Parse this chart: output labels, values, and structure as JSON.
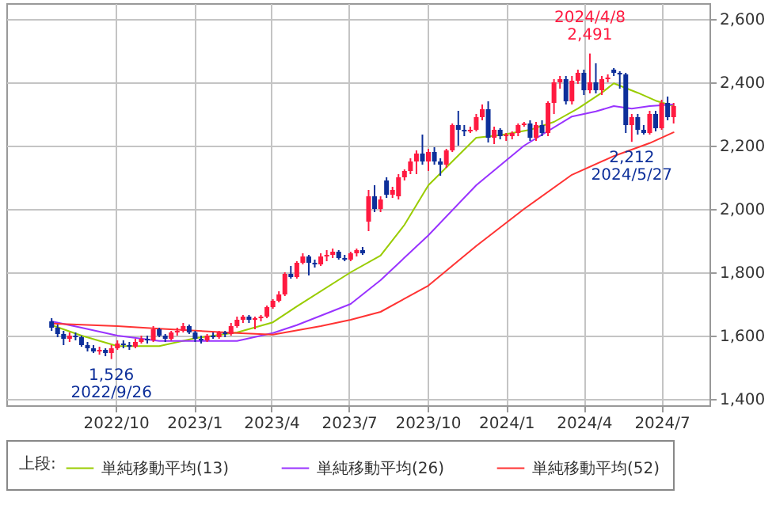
{
  "chart_data": {
    "type": "candlestick",
    "x": [
      "2022-07-18",
      "2022-07-25",
      "2022-08-01",
      "2022-08-08",
      "2022-08-15",
      "2022-08-22",
      "2022-08-29",
      "2022-09-05",
      "2022-09-12",
      "2022-09-19",
      "2022-09-26",
      "2022-10-03",
      "2022-10-10",
      "2022-10-17",
      "2022-10-24",
      "2022-10-31",
      "2022-11-07",
      "2022-11-14",
      "2022-11-21",
      "2022-11-28",
      "2022-12-05",
      "2022-12-12",
      "2022-12-19",
      "2022-12-26",
      "2023-01-02",
      "2023-01-09",
      "2023-01-16",
      "2023-01-23",
      "2023-01-30",
      "2023-02-06",
      "2023-02-13",
      "2023-02-20",
      "2023-02-27",
      "2023-03-06",
      "2023-03-13",
      "2023-03-20",
      "2023-03-27",
      "2023-04-03",
      "2023-04-10",
      "2023-04-17",
      "2023-04-24",
      "2023-05-01",
      "2023-05-08",
      "2023-05-15",
      "2023-05-22",
      "2023-05-29",
      "2023-06-05",
      "2023-06-12",
      "2023-06-19",
      "2023-06-26",
      "2023-07-03",
      "2023-07-10",
      "2023-07-17",
      "2023-07-24",
      "2023-07-31",
      "2023-08-07",
      "2023-08-14",
      "2023-08-21",
      "2023-08-28",
      "2023-09-04",
      "2023-09-11",
      "2023-09-18",
      "2023-09-25",
      "2023-10-02",
      "2023-10-09",
      "2023-10-16",
      "2023-10-23",
      "2023-10-30",
      "2023-11-06",
      "2023-11-13",
      "2023-11-20",
      "2023-11-27",
      "2023-12-04",
      "2023-12-11",
      "2023-12-18",
      "2023-12-25",
      "2024-01-01",
      "2024-01-08",
      "2024-01-15",
      "2024-01-22",
      "2024-01-29",
      "2024-02-05",
      "2024-02-12",
      "2024-02-19",
      "2024-02-26",
      "2024-03-04",
      "2024-03-11",
      "2024-03-18",
      "2024-03-25",
      "2024-04-01",
      "2024-04-08",
      "2024-04-15",
      "2024-04-22",
      "2024-04-29",
      "2024-05-06",
      "2024-05-13",
      "2024-05-20",
      "2024-05-27",
      "2024-06-03",
      "2024-06-10",
      "2024-06-17",
      "2024-06-24",
      "2024-07-01",
      "2024-07-08",
      "2024-07-15"
    ],
    "ohlc": [
      [
        1645,
        1655,
        1615,
        1625
      ],
      [
        1625,
        1635,
        1595,
        1605
      ],
      [
        1605,
        1615,
        1570,
        1590
      ],
      [
        1590,
        1610,
        1580,
        1600
      ],
      [
        1600,
        1610,
        1585,
        1595
      ],
      [
        1595,
        1600,
        1565,
        1570
      ],
      [
        1570,
        1580,
        1550,
        1560
      ],
      [
        1560,
        1570,
        1545,
        1550
      ],
      [
        1550,
        1565,
        1540,
        1555
      ],
      [
        1555,
        1560,
        1535,
        1545
      ],
      [
        1545,
        1570,
        1526,
        1560
      ],
      [
        1560,
        1585,
        1555,
        1575
      ],
      [
        1575,
        1585,
        1560,
        1570
      ],
      [
        1570,
        1580,
        1555,
        1565
      ],
      [
        1565,
        1590,
        1560,
        1580
      ],
      [
        1580,
        1600,
        1575,
        1590
      ],
      [
        1590,
        1600,
        1575,
        1585
      ],
      [
        1585,
        1630,
        1580,
        1620
      ],
      [
        1620,
        1625,
        1595,
        1600
      ],
      [
        1600,
        1605,
        1580,
        1590
      ],
      [
        1590,
        1615,
        1585,
        1610
      ],
      [
        1610,
        1625,
        1600,
        1615
      ],
      [
        1615,
        1640,
        1610,
        1630
      ],
      [
        1630,
        1635,
        1605,
        1610
      ],
      [
        1610,
        1615,
        1580,
        1590
      ],
      [
        1590,
        1600,
        1575,
        1585
      ],
      [
        1585,
        1605,
        1580,
        1600
      ],
      [
        1600,
        1610,
        1590,
        1595
      ],
      [
        1595,
        1615,
        1590,
        1610
      ],
      [
        1610,
        1615,
        1595,
        1605
      ],
      [
        1605,
        1640,
        1600,
        1630
      ],
      [
        1630,
        1660,
        1625,
        1650
      ],
      [
        1650,
        1665,
        1640,
        1660
      ],
      [
        1660,
        1665,
        1640,
        1650
      ],
      [
        1650,
        1660,
        1620,
        1655
      ],
      [
        1655,
        1665,
        1645,
        1660
      ],
      [
        1660,
        1695,
        1655,
        1690
      ],
      [
        1690,
        1715,
        1685,
        1710
      ],
      [
        1710,
        1740,
        1705,
        1730
      ],
      [
        1730,
        1800,
        1725,
        1795
      ],
      [
        1795,
        1820,
        1780,
        1785
      ],
      [
        1785,
        1835,
        1780,
        1830
      ],
      [
        1830,
        1860,
        1825,
        1850
      ],
      [
        1850,
        1855,
        1790,
        1830
      ],
      [
        1830,
        1840,
        1815,
        1825
      ],
      [
        1825,
        1860,
        1820,
        1850
      ],
      [
        1850,
        1870,
        1835,
        1855
      ],
      [
        1855,
        1875,
        1845,
        1865
      ],
      [
        1865,
        1870,
        1840,
        1845
      ],
      [
        1845,
        1855,
        1835,
        1840
      ],
      [
        1840,
        1865,
        1835,
        1860
      ],
      [
        1860,
        1875,
        1850,
        1870
      ],
      [
        1870,
        1880,
        1855,
        1860
      ],
      [
        1960,
        2060,
        1930,
        2040
      ],
      [
        2040,
        2075,
        1990,
        2000
      ],
      [
        2000,
        2040,
        1990,
        2030
      ],
      [
        2090,
        2100,
        2035,
        2045
      ],
      [
        2045,
        2070,
        2035,
        2060
      ],
      [
        2040,
        2110,
        2030,
        2100
      ],
      [
        2100,
        2125,
        2090,
        2120
      ],
      [
        2120,
        2160,
        2110,
        2150
      ],
      [
        2150,
        2185,
        2110,
        2175
      ],
      [
        2175,
        2235,
        2140,
        2150
      ],
      [
        2150,
        2190,
        2120,
        2180
      ],
      [
        2180,
        2195,
        2140,
        2150
      ],
      [
        2150,
        2160,
        2105,
        2140
      ],
      [
        2140,
        2190,
        2130,
        2185
      ],
      [
        2185,
        2270,
        2180,
        2265
      ],
      [
        2265,
        2310,
        2200,
        2250
      ],
      [
        2250,
        2265,
        2230,
        2245
      ],
      [
        2245,
        2260,
        2240,
        2250
      ],
      [
        2250,
        2300,
        2245,
        2290
      ],
      [
        2290,
        2330,
        2280,
        2315
      ],
      [
        2315,
        2340,
        2210,
        2225
      ],
      [
        2225,
        2260,
        2205,
        2250
      ],
      [
        2250,
        2255,
        2220,
        2230
      ],
      [
        2230,
        2240,
        2215,
        2235
      ],
      [
        2230,
        2245,
        2220,
        2240
      ],
      [
        2240,
        2270,
        2230,
        2265
      ],
      [
        2265,
        2275,
        2260,
        2270
      ],
      [
        2270,
        2280,
        2215,
        2225
      ],
      [
        2225,
        2275,
        2215,
        2265
      ],
      [
        2265,
        2280,
        2230,
        2240
      ],
      [
        2240,
        2340,
        2230,
        2335
      ],
      [
        2335,
        2410,
        2300,
        2400
      ],
      [
        2400,
        2420,
        2380,
        2410
      ],
      [
        2410,
        2420,
        2330,
        2340
      ],
      [
        2340,
        2420,
        2330,
        2405
      ],
      [
        2405,
        2440,
        2395,
        2430
      ],
      [
        2430,
        2440,
        2360,
        2375
      ],
      [
        2375,
        2491,
        2365,
        2400
      ],
      [
        2400,
        2460,
        2365,
        2375
      ],
      [
        2375,
        2420,
        2360,
        2410
      ],
      [
        2410,
        2425,
        2400,
        2415
      ],
      [
        2440,
        2445,
        2420,
        2430
      ],
      [
        2430,
        2435,
        2380,
        2425
      ],
      [
        2425,
        2430,
        2240,
        2265
      ],
      [
        2265,
        2300,
        2212,
        2290
      ],
      [
        2290,
        2300,
        2235,
        2250
      ],
      [
        2250,
        2265,
        2235,
        2240
      ],
      [
        2240,
        2310,
        2235,
        2300
      ],
      [
        2300,
        2310,
        2245,
        2255
      ],
      [
        2255,
        2345,
        2250,
        2335
      ],
      [
        2335,
        2355,
        2280,
        2290
      ],
      [
        2290,
        2335,
        2270,
        2325
      ]
    ],
    "colors": [
      "#0d2f9a",
      "#0d2f9a",
      "#0d2f9a",
      "#ff1a40",
      "#0d2f9a",
      "#0d2f9a",
      "#0d2f9a",
      "#0d2f9a",
      "#ff1a40",
      "#0d2f9a",
      "#ff1a40",
      "#ff1a40",
      "#0d2f9a",
      "#0d2f9a",
      "#ff1a40",
      "#ff1a40",
      "#0d2f9a",
      "#ff1a40",
      "#0d2f9a",
      "#0d2f9a",
      "#ff1a40",
      "#ff1a40",
      "#ff1a40",
      "#0d2f9a",
      "#0d2f9a",
      "#0d2f9a",
      "#ff1a40",
      "#0d2f9a",
      "#ff1a40",
      "#0d2f9a",
      "#ff1a40",
      "#ff1a40",
      "#ff1a40",
      "#0d2f9a",
      "#ff1a40",
      "#ff1a40",
      "#ff1a40",
      "#ff1a40",
      "#ff1a40",
      "#ff1a40",
      "#0d2f9a",
      "#ff1a40",
      "#ff1a40",
      "#0d2f9a",
      "#0d2f9a",
      "#ff1a40",
      "#ff1a40",
      "#ff1a40",
      "#0d2f9a",
      "#0d2f9a",
      "#ff1a40",
      "#ff1a40",
      "#0d2f9a",
      "#ff1a40",
      "#0d2f9a",
      "#ff1a40",
      "#0d2f9a",
      "#ff1a40",
      "#ff1a40",
      "#ff1a40",
      "#ff1a40",
      "#ff1a40",
      "#0d2f9a",
      "#ff1a40",
      "#0d2f9a",
      "#0d2f9a",
      "#ff1a40",
      "#ff1a40",
      "#0d2f9a",
      "#0d2f9a",
      "#ff1a40",
      "#ff1a40",
      "#ff1a40",
      "#0d2f9a",
      "#ff1a40",
      "#0d2f9a",
      "#ff1a40",
      "#ff1a40",
      "#ff1a40",
      "#ff1a40",
      "#0d2f9a",
      "#ff1a40",
      "#0d2f9a",
      "#ff1a40",
      "#ff1a40",
      "#ff1a40",
      "#0d2f9a",
      "#ff1a40",
      "#ff1a40",
      "#0d2f9a",
      "#ff1a40",
      "#0d2f9a",
      "#ff1a40",
      "#ff1a40",
      "#0d2f9a",
      "#0d2f9a",
      "#0d2f9a",
      "#ff1a40",
      "#0d2f9a",
      "#0d2f9a",
      "#ff1a40",
      "#0d2f9a",
      "#ff1a40",
      "#0d2f9a",
      "#ff1a40"
    ],
    "series": [
      {
        "type": "line",
        "name": "単純移動平均(13)",
        "color": "#99cc00",
        "x": [
          "2022-07-18",
          "2022-08-22",
          "2022-10-03",
          "2022-11-21",
          "2023-01-02",
          "2023-02-20",
          "2023-04-03",
          "2023-05-01",
          "2023-07-03",
          "2023-08-07",
          "2023-09-04",
          "2023-10-02",
          "2023-10-30",
          "2023-11-27",
          "2023-12-25",
          "2024-01-29",
          "2024-02-26",
          "2024-03-25",
          "2024-04-22",
          "2024-05-06",
          "2024-06-03",
          "2024-06-24",
          "2024-07-15"
        ],
        "values": [
          1633,
          1600,
          1567,
          1567,
          1592,
          1610,
          1642,
          1692,
          1800,
          1853,
          1950,
          2075,
          2150,
          2225,
          2233,
          2250,
          2275,
          2317,
          2367,
          2397,
          2367,
          2342,
          2325
        ]
      },
      {
        "type": "line",
        "name": "単純移動平均(26)",
        "color": "#9933ff",
        "x": [
          "2022-07-18",
          "2022-08-22",
          "2022-10-03",
          "2022-11-21",
          "2023-01-02",
          "2023-02-20",
          "2023-04-03",
          "2023-05-01",
          "2023-07-03",
          "2023-08-07",
          "2023-10-02",
          "2023-11-27",
          "2024-01-22",
          "2024-03-18",
          "2024-04-15",
          "2024-05-06",
          "2024-05-27",
          "2024-06-17",
          "2024-07-15"
        ],
        "values": [
          1645,
          1625,
          1600,
          1583,
          1583,
          1583,
          1608,
          1633,
          1700,
          1775,
          1917,
          2075,
          2200,
          2292,
          2308,
          2325,
          2317,
          2325,
          2330
        ]
      },
      {
        "type": "line",
        "name": "単純移動平均(52)",
        "color": "#ff3333",
        "x": [
          "2022-07-18",
          "2022-10-03",
          "2022-11-21",
          "2023-02-20",
          "2023-04-03",
          "2023-05-29",
          "2023-07-03",
          "2023-08-07",
          "2023-10-02",
          "2023-11-27",
          "2024-01-22",
          "2024-03-18",
          "2024-05-06",
          "2024-06-17",
          "2024-07-15"
        ],
        "values": [
          1638,
          1630,
          1622,
          1608,
          1603,
          1630,
          1650,
          1675,
          1758,
          1883,
          2000,
          2108,
          2167,
          2208,
          2242
        ]
      }
    ],
    "annotations": [
      {
        "text": "2024/4/8",
        "x": "2024-04-08",
        "y": 2491
      },
      {
        "text": "2,491",
        "x": "2024-04-08",
        "y": 2491
      },
      {
        "text": "1,526",
        "x": "2022-09-26",
        "y": 1526
      },
      {
        "text": "2022/9/26",
        "x": "2022-09-26",
        "y": 1526
      },
      {
        "text": "2,212",
        "x": "2024-05-27",
        "y": 2212
      },
      {
        "text": "2024/5/27",
        "x": "2024-05-27",
        "y": 2212
      }
    ],
    "xlim": [
      "2022-05-26",
      "2024-08-26"
    ],
    "xticks": [
      {
        "value": "2022-10-01",
        "label": "2022/10"
      },
      {
        "value": "2023-01-01",
        "label": "2023/1"
      },
      {
        "value": "2023-04-01",
        "label": "2023/4"
      },
      {
        "value": "2023-07-01",
        "label": "2023/7"
      },
      {
        "value": "2023-10-01",
        "label": "2023/10"
      },
      {
        "value": "2024-01-01",
        "label": "2024/1"
      },
      {
        "value": "2024-04-01",
        "label": "2024/4"
      },
      {
        "value": "2024-07-01",
        "label": "2024/7"
      }
    ],
    "ylim": [
      1380,
      2650
    ],
    "yticks": [
      {
        "value": 1400,
        "label": "1,400"
      },
      {
        "value": 1600,
        "label": "1,600"
      },
      {
        "value": 1800,
        "label": "1,800"
      },
      {
        "value": 2000,
        "label": "2,000"
      },
      {
        "value": 2200,
        "label": "2,200"
      },
      {
        "value": 2400,
        "label": "2,400"
      },
      {
        "value": 2600,
        "label": "2,600"
      }
    ],
    "grid": true,
    "legend": "bottom",
    "legend_title": "上段:"
  }
}
